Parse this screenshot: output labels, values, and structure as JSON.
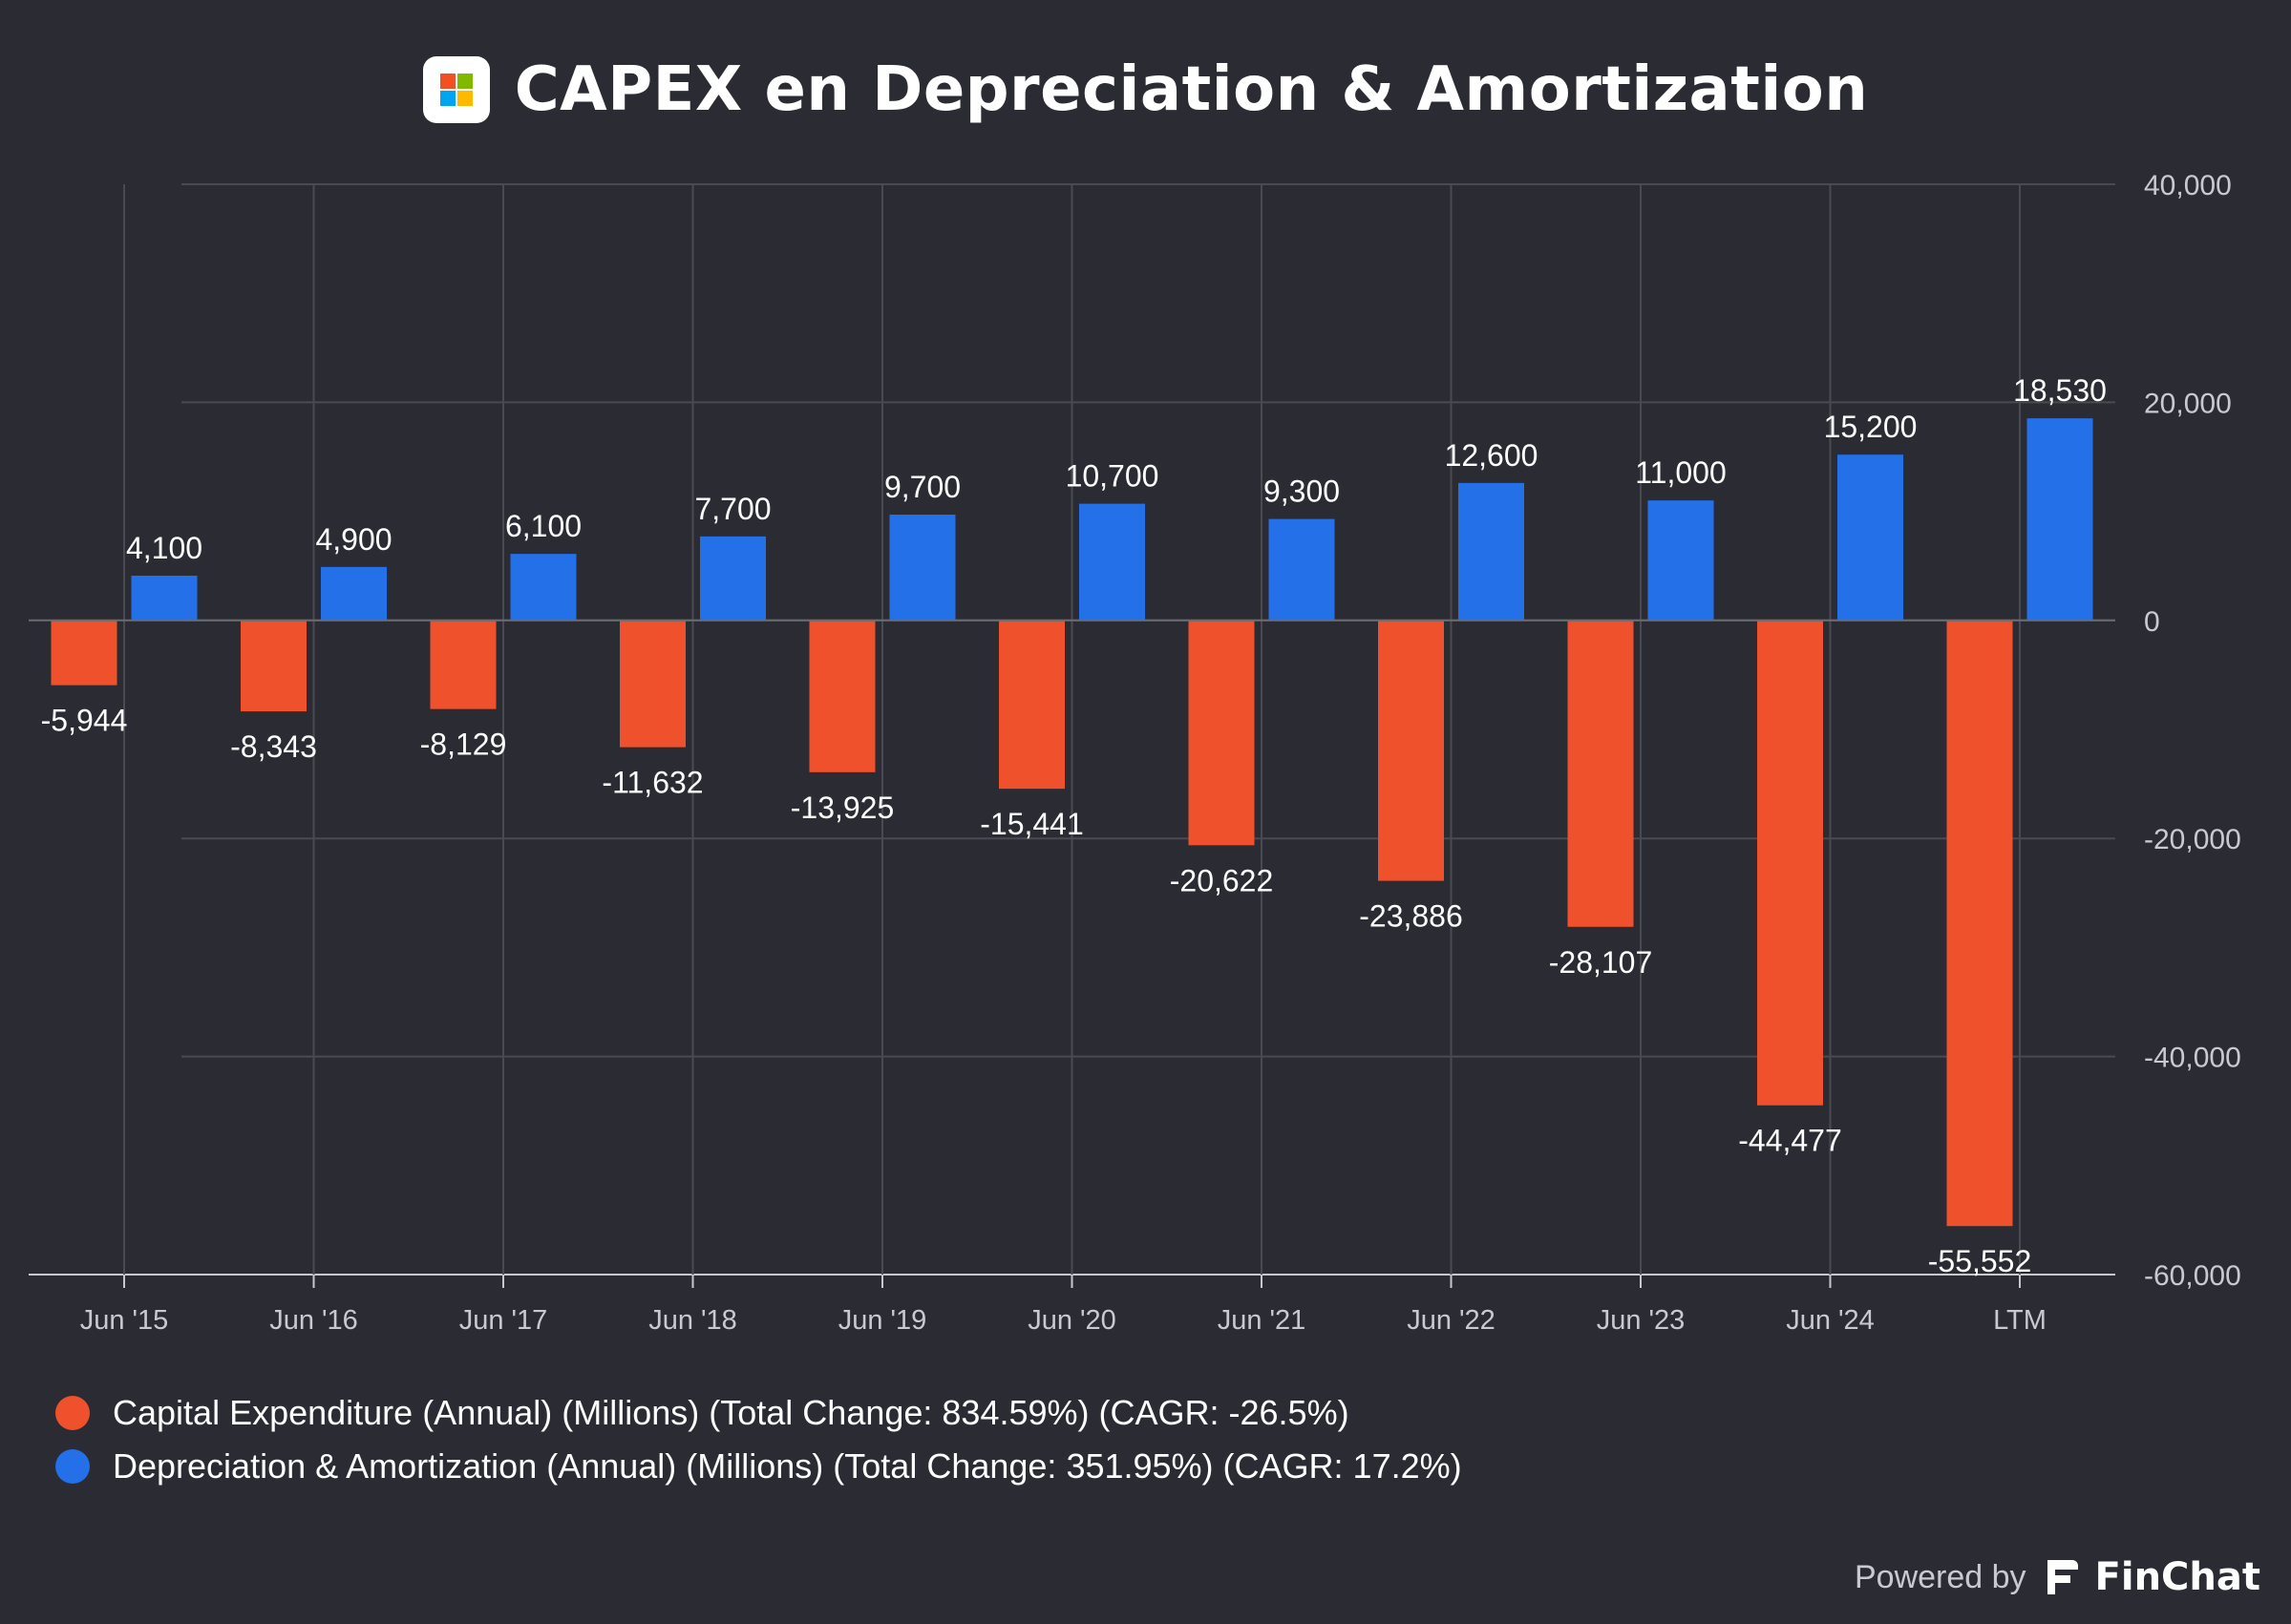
{
  "header": {
    "title": "CAPEX en Depreciation & Amortization",
    "logo_icon": "microsoft-logo-icon",
    "logo_colors": [
      "#f25022",
      "#7fba00",
      "#00a4ef",
      "#ffb900"
    ]
  },
  "chart_data": {
    "type": "bar",
    "categories": [
      "Jun '15",
      "Jun '16",
      "Jun '17",
      "Jun '18",
      "Jun '19",
      "Jun '20",
      "Jun '21",
      "Jun '22",
      "Jun '23",
      "Jun '24",
      "LTM"
    ],
    "series": [
      {
        "name": "Capital Expenditure (Annual) (Millions) (Total Change: 834.59%) (CAGR: -26.5%)",
        "color": "#f0512d",
        "values": [
          -5944,
          -8343,
          -8129,
          -11632,
          -13925,
          -15441,
          -20622,
          -23886,
          -28107,
          -44477,
          -55552
        ],
        "labels": [
          "-5,944",
          "-8,343",
          "-8,129",
          "-11,632",
          "-13,925",
          "-15,441",
          "-20,622",
          "-23,886",
          "-28,107",
          "-44,477",
          "-55,552"
        ]
      },
      {
        "name": "Depreciation & Amortization (Annual) (Millions) (Total Change: 351.95%) (CAGR: 17.2%)",
        "color": "#2470e8",
        "values": [
          4100,
          4900,
          6100,
          7700,
          9700,
          10700,
          9300,
          12600,
          11000,
          15200,
          18530
        ],
        "labels": [
          "4,100",
          "4,900",
          "6,100",
          "7,700",
          "9,700",
          "10,700",
          "9,300",
          "12,600",
          "11,000",
          "15,200",
          "18,530"
        ]
      }
    ],
    "y_ticks": [
      40000,
      20000,
      0,
      -20000,
      -40000,
      -60000
    ],
    "y_tick_labels": [
      "40,000",
      "20,000",
      "0",
      "-20,000",
      "-40,000",
      "-60,000"
    ],
    "ylim": [
      -60000,
      40000
    ],
    "y_axis_position": "right",
    "grid": true,
    "legend_position": "bottom-left"
  },
  "footer": {
    "powered_by": "Powered by",
    "brand": "FinChat",
    "brand_icon": "finchat-logo-icon"
  }
}
